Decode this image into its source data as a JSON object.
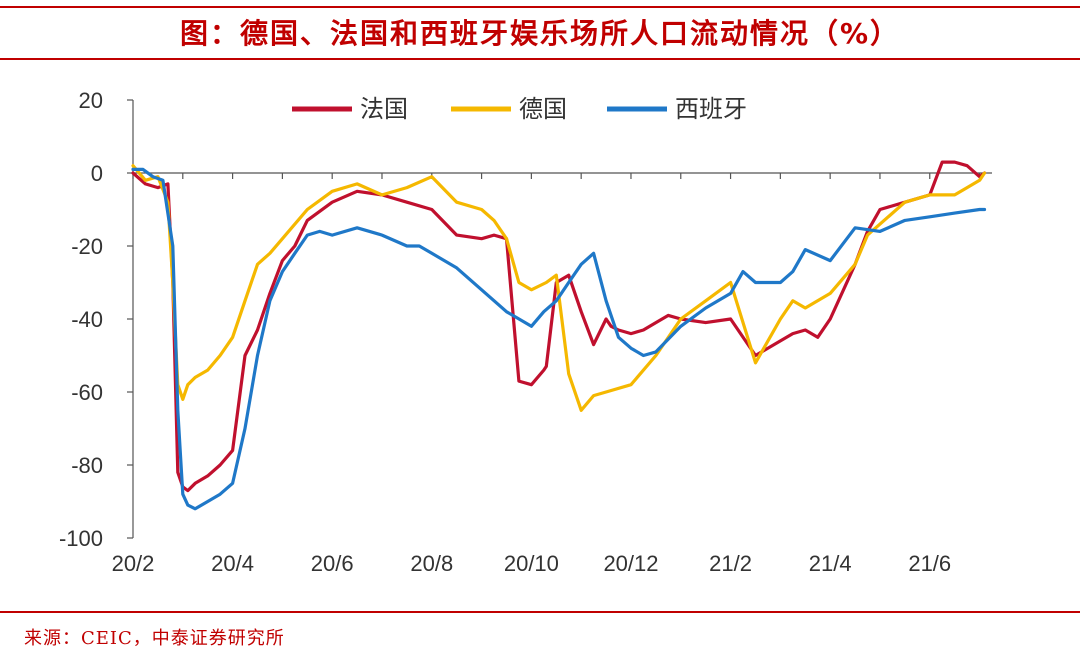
{
  "title": "图：德国、法国和西班牙娱乐场所人口流动情况（%）",
  "source": "来源：CEIC，中泰证券研究所",
  "colors": {
    "法国": "#c0102e",
    "德国": "#f5b800",
    "西班牙": "#1f78c8",
    "accent": "#c00000"
  },
  "chart_data": {
    "type": "line",
    "ylim": [
      -100,
      20
    ],
    "yticks": [
      20,
      0,
      -20,
      -40,
      -60,
      -80,
      -100
    ],
    "xticks": [
      "20/2",
      "20/4",
      "20/6",
      "20/8",
      "20/10",
      "20/12",
      "21/2",
      "21/4",
      "21/6"
    ],
    "xrange_months": [
      0,
      17.25
    ],
    "legend_position": "top-center",
    "series": [
      {
        "name": "法国",
        "color": "#c0102e",
        "x": [
          0,
          0.25,
          0.5,
          0.7,
          0.8,
          0.9,
          1,
          1.1,
          1.25,
          1.5,
          1.75,
          2,
          2.25,
          2.5,
          2.75,
          3,
          3.25,
          3.5,
          4,
          4.5,
          5,
          5.5,
          6,
          6.5,
          7,
          7.25,
          7.5,
          7.75,
          8,
          8.25,
          8.3,
          8.5,
          8.75,
          9,
          9.25,
          9.5,
          9.6,
          9.75,
          10,
          10.25,
          10.5,
          10.75,
          11,
          11.5,
          12,
          12.5,
          13,
          13.25,
          13.5,
          13.75,
          14,
          14.5,
          14.75,
          15,
          15.5,
          16,
          16.25,
          16.5,
          16.75,
          17,
          17.1
        ],
        "y": [
          0,
          -3,
          -4,
          -3,
          -30,
          -82,
          -86,
          -87,
          -85,
          -83,
          -80,
          -76,
          -50,
          -43,
          -33,
          -24,
          -20,
          -13,
          -8,
          -5,
          -6,
          -8,
          -10,
          -17,
          -18,
          -17,
          -18,
          -57,
          -58,
          -54,
          -53,
          -30,
          -28,
          -38,
          -47,
          -40,
          -42,
          -43,
          -44,
          -43,
          -41,
          -39,
          -40,
          -41,
          -40,
          -50,
          -46,
          -44,
          -43,
          -45,
          -40,
          -25,
          -16,
          -10,
          -8,
          -6,
          3,
          3,
          2,
          -1,
          0
        ]
      },
      {
        "name": "德国",
        "color": "#f5b800",
        "x": [
          0,
          0.25,
          0.5,
          0.7,
          0.8,
          0.9,
          1,
          1.1,
          1.25,
          1.5,
          1.75,
          2,
          2.25,
          2.5,
          2.75,
          3,
          3.5,
          4,
          4.5,
          5,
          5.5,
          6,
          6.5,
          7,
          7.25,
          7.5,
          7.75,
          8,
          8.3,
          8.5,
          8.75,
          9,
          9.25,
          9.5,
          10,
          10.5,
          11,
          11.5,
          12,
          12.5,
          13,
          13.25,
          13.5,
          14,
          14.5,
          14.75,
          15,
          15.5,
          16,
          16.5,
          16.75,
          17,
          17.1
        ],
        "y": [
          2,
          -2,
          -1,
          -8,
          -30,
          -58,
          -62,
          -58,
          -56,
          -54,
          -50,
          -45,
          -35,
          -25,
          -22,
          -18,
          -10,
          -5,
          -3,
          -6,
          -4,
          -1,
          -8,
          -10,
          -13,
          -18,
          -30,
          -32,
          -30,
          -28,
          -55,
          -65,
          -61,
          -60,
          -58,
          -50,
          -40,
          -35,
          -30,
          -52,
          -40,
          -35,
          -37,
          -33,
          -25,
          -17,
          -14,
          -8,
          -6,
          -6,
          -4,
          -2,
          0
        ]
      },
      {
        "name": "西班牙",
        "color": "#1f78c8",
        "x": [
          0,
          0.2,
          0.4,
          0.6,
          0.8,
          0.9,
          1,
          1.1,
          1.25,
          1.5,
          1.75,
          2,
          2.25,
          2.5,
          2.75,
          3,
          3.25,
          3.5,
          3.75,
          4,
          4.5,
          5,
          5.5,
          5.75,
          6,
          6.5,
          7,
          7.5,
          8,
          8.25,
          8.5,
          8.75,
          9,
          9.25,
          9.5,
          9.75,
          10,
          10.25,
          10.5,
          11,
          11.5,
          12,
          12.25,
          12.5,
          13,
          13.25,
          13.5,
          14,
          14.5,
          15,
          15.5,
          16,
          16.5,
          17,
          17.1
        ],
        "y": [
          1,
          1,
          -1,
          -2,
          -20,
          -65,
          -88,
          -91,
          -92,
          -90,
          -88,
          -85,
          -70,
          -50,
          -35,
          -27,
          -22,
          -17,
          -16,
          -17,
          -15,
          -17,
          -20,
          -20,
          -22,
          -26,
          -32,
          -38,
          -42,
          -38,
          -35,
          -30,
          -25,
          -22,
          -35,
          -45,
          -48,
          -50,
          -49,
          -42,
          -37,
          -33,
          -27,
          -30,
          -30,
          -27,
          -21,
          -24,
          -15,
          -16,
          -13,
          -12,
          -11,
          -10,
          -10
        ]
      }
    ]
  }
}
